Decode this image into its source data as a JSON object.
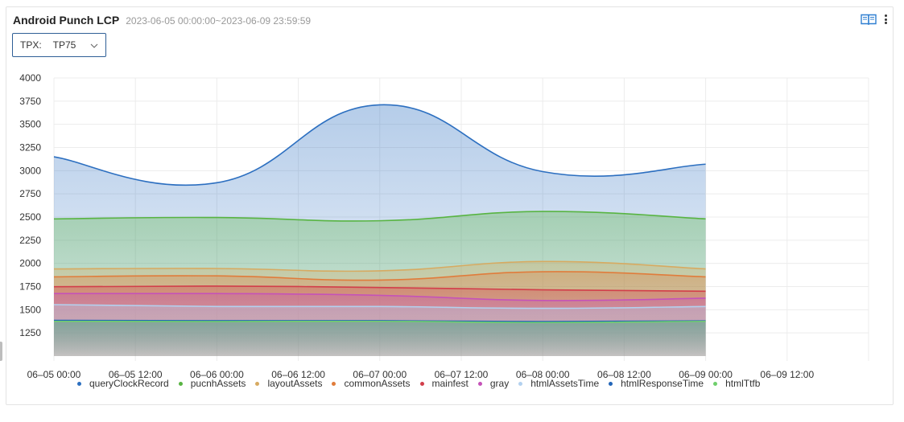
{
  "header": {
    "title": "Android Punch LCP",
    "time_range": "2023-06-05 00:00:00~2023-06-09 23:59:59",
    "book_icon": "book-icon",
    "more_icon": "more-vertical-icon"
  },
  "tpx_select": {
    "label": "TPX:",
    "value": "TP75",
    "icon": "chevron-down-icon",
    "border_color": "#2f5f96"
  },
  "chart_data": {
    "type": "area",
    "y_ticks": [
      "4000",
      "3750",
      "3500",
      "3250",
      "3000",
      "2750",
      "2500",
      "2250",
      "2000",
      "1750",
      "1500",
      "1250"
    ],
    "ylim": [
      1000,
      4000
    ],
    "x_ticks": [
      "06–05 00:00",
      "06–05 12:00",
      "06–06 00:00",
      "06–06 12:00",
      "06–07 00:00",
      "06–07 12:00",
      "06–08 00:00",
      "06–08 12:00",
      "06–09 00:00",
      "06–09 12:00"
    ],
    "x": [
      "06–05 00:00",
      "06–06 00:00",
      "06–07 00:00",
      "06–08 00:00",
      "06–09 00:00"
    ],
    "grid": true,
    "legend_position": "bottom",
    "series": [
      {
        "name": "queryClockRecord",
        "color": "#2c6fc0",
        "values": [
          3150,
          2870,
          3710,
          2990,
          3070
        ]
      },
      {
        "name": "pucnhAssets",
        "color": "#58b442",
        "values": [
          2480,
          2495,
          2460,
          2560,
          2480
        ]
      },
      {
        "name": "layoutAssets",
        "color": "#d7aa61",
        "values": [
          1940,
          1945,
          1920,
          2020,
          1940
        ]
      },
      {
        "name": "commonAssets",
        "color": "#e07c3b",
        "values": [
          1855,
          1865,
          1820,
          1910,
          1855
        ]
      },
      {
        "name": "mainfest",
        "color": "#d23e4a",
        "values": [
          1748,
          1755,
          1740,
          1715,
          1700
        ]
      },
      {
        "name": "gray",
        "color": "#c552b8",
        "values": [
          1675,
          1675,
          1655,
          1600,
          1625
        ]
      },
      {
        "name": "htmlAssetsTime",
        "color": "#b3d1ef",
        "values": [
          1555,
          1535,
          1535,
          1515,
          1535
        ]
      },
      {
        "name": "htmlResponseTime",
        "color": "#2366b8",
        "values": [
          1385,
          1382,
          1382,
          1372,
          1380
        ]
      },
      {
        "name": "htmlTtfb",
        "color": "#6fcf6c",
        "values": [
          1375,
          1372,
          1375,
          1362,
          1375
        ]
      }
    ]
  }
}
